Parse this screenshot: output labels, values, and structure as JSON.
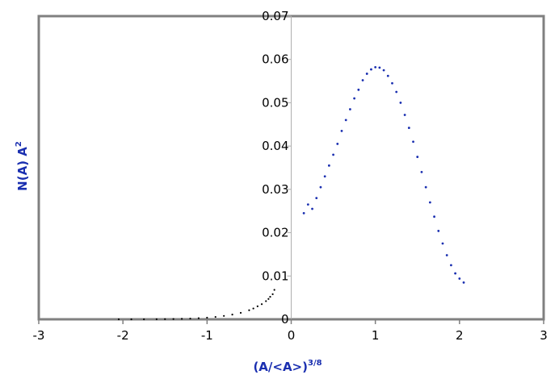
{
  "chart_data": {
    "type": "scatter",
    "xlabel": "(A/<A>)",
    "xlabel_exponent": "3/8",
    "ylabel": "N(A) A",
    "ylabel_exponent": "2",
    "xlim": [
      -3,
      3
    ],
    "ylim": [
      0,
      0.07
    ],
    "x_ticks": [
      -3,
      -2,
      -1,
      0,
      1,
      2,
      3
    ],
    "x_tick_labels": [
      "-3",
      "-2",
      "-1",
      "0",
      "1",
      "2",
      "3"
    ],
    "y_ticks": [
      0.01,
      0.02,
      0.03,
      0.04,
      0.05,
      0.06,
      0.07
    ],
    "y_tick_labels": [
      "0.01",
      "0.02",
      "0.03",
      "0.04",
      "0.05",
      "0.06",
      "0.07"
    ],
    "grid": false,
    "legend": "none",
    "plot_area_color": "#ffffff",
    "frame_color": "#808080",
    "series": [
      {
        "color": "#000000",
        "x": [
          -2.05,
          -1.9,
          -1.75,
          -1.6,
          -1.5,
          -1.4,
          -1.3,
          -1.2,
          -1.1,
          -1.0,
          -0.9,
          -0.8,
          -0.7,
          -0.6,
          -0.5,
          -0.45,
          -0.4,
          -0.35,
          -0.3,
          -0.27,
          -0.25,
          -0.22,
          -0.2
        ],
        "y": [
          0.0,
          0.0,
          0.0,
          2e-05,
          4e-05,
          7e-05,
          0.00011,
          0.00017,
          0.00026,
          0.00038,
          0.00055,
          0.00078,
          0.0011,
          0.0015,
          0.0021,
          0.0025,
          0.003,
          0.0035,
          0.0042,
          0.0047,
          0.0052,
          0.0058,
          0.0068
        ]
      },
      {
        "color": "#1a2fb0",
        "x": [
          0.15,
          0.2,
          0.25,
          0.3,
          0.35,
          0.4,
          0.45,
          0.5,
          0.55,
          0.6,
          0.65,
          0.7,
          0.75,
          0.8,
          0.85,
          0.9,
          0.95,
          1.0,
          1.05,
          1.1,
          1.15,
          1.2,
          1.25,
          1.3,
          1.35,
          1.4,
          1.45,
          1.5,
          1.55,
          1.6,
          1.65,
          1.7,
          1.75,
          1.8,
          1.85,
          1.9,
          1.95,
          2.0,
          2.05
        ],
        "y": [
          0.0245,
          0.0265,
          0.0255,
          0.028,
          0.0305,
          0.033,
          0.0355,
          0.038,
          0.0405,
          0.0435,
          0.046,
          0.0485,
          0.051,
          0.053,
          0.0552,
          0.0567,
          0.0577,
          0.0582,
          0.0581,
          0.0575,
          0.0562,
          0.0545,
          0.0525,
          0.05,
          0.0472,
          0.0442,
          0.041,
          0.0375,
          0.034,
          0.0305,
          0.027,
          0.0237,
          0.0204,
          0.0175,
          0.0148,
          0.0125,
          0.0106,
          0.0094,
          0.0085
        ]
      }
    ]
  }
}
